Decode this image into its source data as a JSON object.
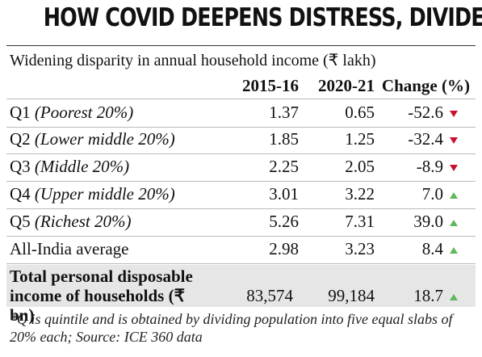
{
  "header": {
    "title": "HOW COVID DEEPENS DISTRESS, DIVIDE",
    "subtitle": "Widening disparity in annual household income  (₹ lakh)"
  },
  "table": {
    "columns": [
      "2015-16",
      "2020-21",
      "Change (%)"
    ],
    "rows": [
      {
        "label": "Q1",
        "group": "(Poorest 20%)",
        "values": [
          "1.37",
          "0.65",
          "-52.6"
        ]
      },
      {
        "label": "Q2",
        "group": "(Lower middle 20%)",
        "values": [
          "1.85",
          "1.25",
          "-32.4"
        ]
      },
      {
        "label": "Q3",
        "group": "(Middle 20%)",
        "values": [
          "2.25",
          "2.05",
          "-8.9"
        ]
      },
      {
        "label": "Q4",
        "group": "(Upper middle 20%)",
        "values": [
          "3.01",
          "3.22",
          "7.0"
        ]
      },
      {
        "label": "Q5",
        "group": "(Richest 20%)",
        "values": [
          "5.26",
          "7.31",
          "39.0"
        ]
      },
      {
        "label": "All-India average",
        "values": [
          "2.98",
          "3.23",
          "8.4"
        ]
      }
    ],
    "total": {
      "label": "Total personal disposable income of households (₹ bn)",
      "values": [
        "83,574",
        "99,184",
        "18.7"
      ]
    }
  },
  "footnote": "*Q is quintile and is obtained by dividing population into five equal slabs of 20% each; Source: ICE 360 data"
}
